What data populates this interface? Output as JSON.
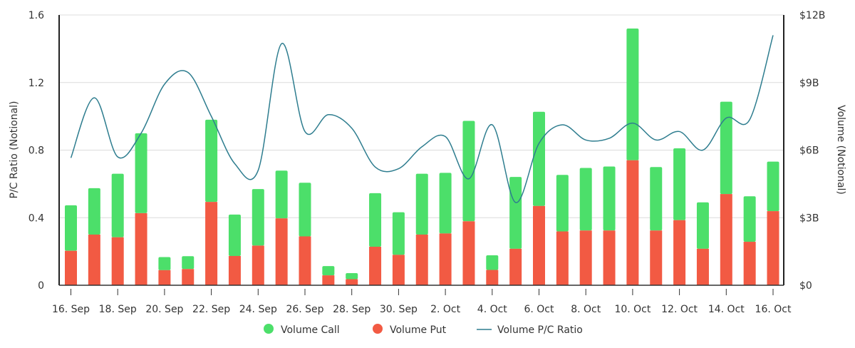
{
  "chart_data": {
    "type": "bar+line",
    "stacked": true,
    "x": [
      "16. Sep",
      "17. Sep",
      "18. Sep",
      "19. Sep",
      "20. Sep",
      "21. Sep",
      "22. Sep",
      "23. Sep",
      "24. Sep",
      "25. Sep",
      "26. Sep",
      "27. Sep",
      "28. Sep",
      "29. Sep",
      "30. Sep",
      "1. Oct",
      "2. Oct",
      "3. Oct",
      "4. Oct",
      "5. Oct",
      "6. Oct",
      "7. Oct",
      "8. Oct",
      "9. Oct",
      "10. Oct",
      "11. Oct",
      "12. Oct",
      "13. Oct",
      "14. Oct",
      "15. Oct",
      "16. Oct"
    ],
    "x_tick_labels": [
      "16. Sep",
      "18. Sep",
      "20. Sep",
      "22. Sep",
      "24. Sep",
      "26. Sep",
      "28. Sep",
      "30. Sep",
      "2. Oct",
      "4. Oct",
      "6. Oct",
      "8. Oct",
      "10. Oct",
      "12. Oct",
      "14. Oct",
      "16. Oct"
    ],
    "y_left": {
      "label": "P/C Ratio (Notional)",
      "range": [
        0,
        1.6
      ],
      "ticks": [
        "0",
        "0.4",
        "0.8",
        "1.2",
        "1.6"
      ]
    },
    "y_right": {
      "label": "Volume (Notional)",
      "range": [
        0,
        12
      ],
      "unit": "$B",
      "ticks": [
        "$0",
        "$3B",
        "$6B",
        "$9B",
        "$12B"
      ]
    },
    "grid": true,
    "legend_position": "bottom",
    "series": [
      {
        "name": "Volume Call",
        "type": "bar",
        "axis": "right",
        "color": "#4cdf6a",
        "values": [
          2.02,
          2.06,
          2.82,
          3.55,
          0.58,
          0.57,
          3.65,
          1.84,
          2.51,
          2.12,
          2.38,
          0.41,
          0.27,
          2.38,
          1.89,
          2.7,
          2.69,
          4.46,
          0.65,
          3.19,
          4.18,
          2.51,
          2.78,
          2.84,
          5.85,
          2.82,
          3.19,
          2.06,
          4.1,
          2.02,
          2.2
        ]
      },
      {
        "name": "Volume Put",
        "type": "bar",
        "axis": "right",
        "color": "#f25a43",
        "values": [
          1.53,
          2.25,
          2.13,
          3.2,
          0.67,
          0.72,
          3.7,
          1.3,
          1.76,
          2.97,
          2.17,
          0.44,
          0.27,
          1.71,
          1.35,
          2.25,
          2.3,
          2.84,
          0.68,
          1.62,
          3.52,
          2.39,
          2.43,
          2.43,
          5.55,
          2.43,
          2.89,
          1.62,
          4.05,
          1.93,
          3.29
        ]
      },
      {
        "name": "Volume P/C Ratio",
        "type": "line",
        "axis": "left",
        "color": "#2e7d8f",
        "values": [
          0.754,
          1.11,
          0.76,
          0.9,
          1.19,
          1.26,
          1.0,
          0.72,
          0.68,
          1.43,
          0.91,
          1.01,
          0.93,
          0.7,
          0.69,
          0.82,
          0.88,
          0.63,
          0.95,
          0.49,
          0.84,
          0.95,
          0.86,
          0.87,
          0.96,
          0.86,
          0.91,
          0.8,
          0.99,
          0.98,
          1.48
        ]
      }
    ]
  }
}
